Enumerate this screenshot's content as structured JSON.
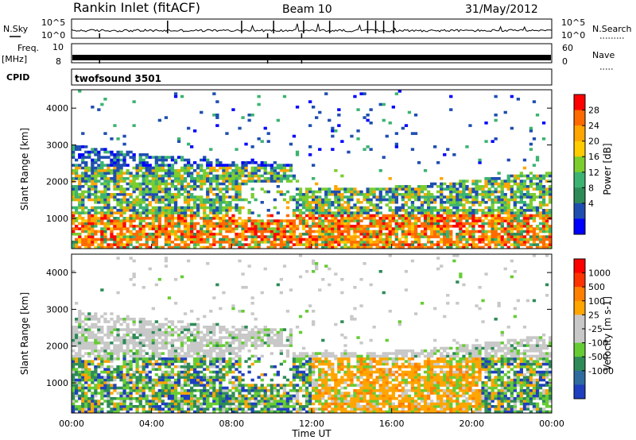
{
  "header": {
    "station": "Rankin Inlet (fitACF)",
    "beam": "Beam 10",
    "date": "31/May/2012"
  },
  "status_panels": {
    "nsky_label": "N.Sky",
    "nsearch_label": "N.Search",
    "noise_tick_top": "10^5",
    "noise_tick_bottom": "10^0",
    "freq_label": "Freq.",
    "freq_unit": "[MHz]",
    "freq_ticks": [
      "10",
      "8"
    ],
    "nave_label": "Nave",
    "nave_ticks": [
      "60",
      "0"
    ],
    "cpid_label": "CPID",
    "cpid_value": "twofsound 3501"
  },
  "chart_data": [
    {
      "type": "heatmap",
      "panel": "power",
      "ylabel": "Slant Range [km]",
      "xlabel": "",
      "yticks": [
        "4000",
        "3000",
        "2000",
        "1000"
      ],
      "ylim": [
        180,
        4500
      ],
      "xlim_hours": [
        0,
        24
      ],
      "colorbar": {
        "label": "Power [dB]",
        "ticks": [
          "28",
          "24",
          "20",
          "16",
          "12",
          "8",
          "4"
        ],
        "colors": [
          "#0000ff",
          "#1e4eb0",
          "#2e8b57",
          "#3cb371",
          "#7ccd2e",
          "#ffcc00",
          "#ffa500",
          "#ff6a00",
          "#ff0000"
        ]
      }
    },
    {
      "type": "heatmap",
      "panel": "velocity",
      "ylabel": "Slant Range [km]",
      "xlabel": "Time UT",
      "yticks": [
        "4000",
        "3000",
        "2000",
        "1000"
      ],
      "xticks": [
        "00:00",
        "04:00",
        "08:00",
        "12:00",
        "16:00",
        "20:00",
        "00:00"
      ],
      "ylim": [
        180,
        4500
      ],
      "xlim_hours": [
        0,
        24
      ],
      "colorbar": {
        "label": "Velocity [m s-1]",
        "ticks": [
          "1000",
          "500",
          "100",
          "25",
          "-25",
          "-100",
          "-500",
          "-1000"
        ],
        "colors": [
          "#1f3fbf",
          "#2e6b9e",
          "#2e8b57",
          "#66cc33",
          "#c8c8c8",
          "#c8c8c8",
          "#ffa500",
          "#ff7f00",
          "#ff3300",
          "#ff0000"
        ]
      }
    }
  ]
}
